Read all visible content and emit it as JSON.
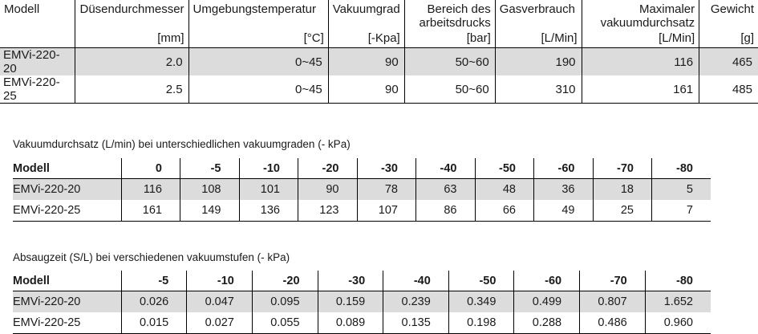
{
  "spec_table": {
    "headers": [
      {
        "label": "Modell",
        "unit": ""
      },
      {
        "label": "Düsendurchmesser",
        "unit": "[mm]"
      },
      {
        "label": "Umgebungstemperatur",
        "unit": "[°C]"
      },
      {
        "label": "Vakuumgrad",
        "unit": "[-Kpa]"
      },
      {
        "label": "Bereich des arbeitsdrucks",
        "unit": "[bar]"
      },
      {
        "label": "Gasverbrauch",
        "unit": "[L/Min]"
      },
      {
        "label": "Maximaler vakuumdurchsatz",
        "unit": "[L/Min]"
      },
      {
        "label": "Gewicht",
        "unit": "[g]"
      }
    ],
    "rows": [
      [
        "EMVi-220-20",
        "2.0",
        "0~45",
        "90",
        "50~60",
        "190",
        "116",
        "465"
      ],
      [
        "EMVi-220-25",
        "2.5",
        "0~45",
        "90",
        "50~60",
        "310",
        "161",
        "485"
      ]
    ]
  },
  "flow_table": {
    "caption": "Vakuumdurchsatz (L/min) bei unterschiedlichen vakuumgraden (- kPa)",
    "headers": [
      "Modell",
      "0",
      "-5",
      "-10",
      "-20",
      "-30",
      "-40",
      "-50",
      "-60",
      "-70",
      "-80"
    ],
    "rows": [
      [
        "EMVi-220-20",
        "116",
        "108",
        "101",
        "90",
        "78",
        "63",
        "48",
        "36",
        "18",
        "5"
      ],
      [
        "EMVi-220-25",
        "161",
        "149",
        "136",
        "123",
        "107",
        "86",
        "66",
        "49",
        "25",
        "7"
      ]
    ]
  },
  "time_table": {
    "caption": "Absaugzeit (S/L) bei verschiedenen vakuumstufen (- kPa)",
    "headers": [
      "Modell",
      "-5",
      "-10",
      "-20",
      "-30",
      "-40",
      "-50",
      "-60",
      "-70",
      "-80"
    ],
    "rows": [
      [
        "EMVi-220-20",
        "0.026",
        "0.047",
        "0.095",
        "0.159",
        "0.239",
        "0.349",
        "0.499",
        "0.807",
        "1.652"
      ],
      [
        "EMVi-220-25",
        "0.015",
        "0.027",
        "0.055",
        "0.089",
        "0.135",
        "0.198",
        "0.288",
        "0.486",
        "0.960"
      ]
    ]
  }
}
